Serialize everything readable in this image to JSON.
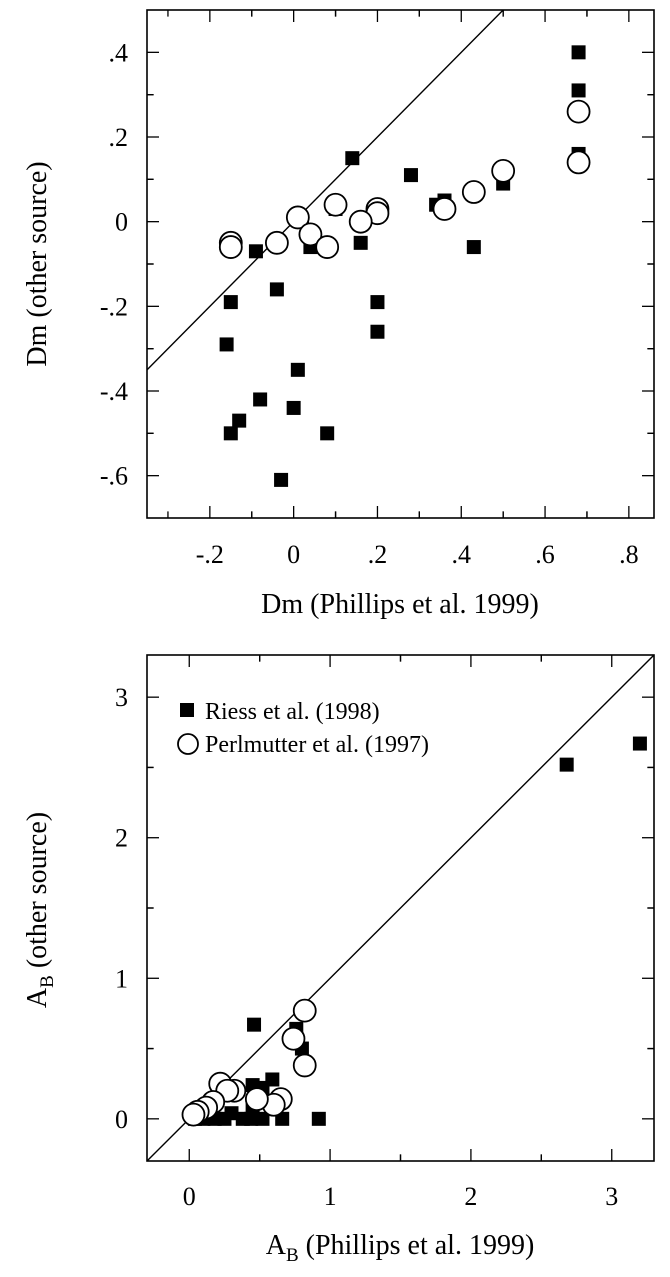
{
  "chart_data": [
    {
      "type": "scatter",
      "title": "",
      "xlabel": "Dm (Phillips et al. 1999)",
      "ylabel": "Dm (other source)",
      "xlim": [
        -0.35,
        0.86
      ],
      "ylim": [
        -0.7,
        0.5
      ],
      "x_ticks": [
        {
          "value": -0.2,
          "label": "-.2"
        },
        {
          "value": 0.0,
          "label": "0"
        },
        {
          "value": 0.2,
          "label": ".2"
        },
        {
          "value": 0.4,
          "label": ".4"
        },
        {
          "value": 0.6,
          "label": ".6"
        },
        {
          "value": 0.8,
          "label": ".8"
        }
      ],
      "y_ticks": [
        {
          "value": -0.6,
          "label": "-.6"
        },
        {
          "value": -0.4,
          "label": "-.4"
        },
        {
          "value": -0.2,
          "label": "-.2"
        },
        {
          "value": 0.0,
          "label": "0"
        },
        {
          "value": 0.2,
          "label": ".2"
        },
        {
          "value": 0.4,
          "label": ".4"
        }
      ],
      "reference_line": "y = x",
      "grid": false,
      "series": [
        {
          "marker": "filled-square",
          "points": [
            {
              "x": 0.68,
              "y": 0.4
            },
            {
              "x": 0.68,
              "y": 0.31
            },
            {
              "x": 0.68,
              "y": 0.16
            },
            {
              "x": 0.14,
              "y": 0.15
            },
            {
              "x": 0.28,
              "y": 0.11
            },
            {
              "x": 0.5,
              "y": 0.09
            },
            {
              "x": 0.36,
              "y": 0.05
            },
            {
              "x": 0.34,
              "y": 0.04
            },
            {
              "x": 0.1,
              "y": 0.03
            },
            {
              "x": 0.02,
              "y": 0.0
            },
            {
              "x": 0.04,
              "y": -0.06
            },
            {
              "x": 0.16,
              "y": -0.05
            },
            {
              "x": 0.43,
              "y": -0.06
            },
            {
              "x": -0.09,
              "y": -0.07
            },
            {
              "x": -0.04,
              "y": -0.16
            },
            {
              "x": -0.15,
              "y": -0.19
            },
            {
              "x": 0.2,
              "y": -0.19
            },
            {
              "x": 0.2,
              "y": -0.26
            },
            {
              "x": -0.16,
              "y": -0.29
            },
            {
              "x": 0.01,
              "y": -0.35
            },
            {
              "x": -0.08,
              "y": -0.42
            },
            {
              "x": 0.0,
              "y": -0.44
            },
            {
              "x": -0.13,
              "y": -0.47
            },
            {
              "x": -0.15,
              "y": -0.5
            },
            {
              "x": 0.08,
              "y": -0.5
            },
            {
              "x": -0.03,
              "y": -0.61
            }
          ]
        },
        {
          "marker": "open-circle",
          "points": [
            {
              "x": 0.68,
              "y": 0.26
            },
            {
              "x": 0.68,
              "y": 0.14
            },
            {
              "x": 0.5,
              "y": 0.12
            },
            {
              "x": 0.43,
              "y": 0.07
            },
            {
              "x": 0.36,
              "y": 0.03
            },
            {
              "x": 0.2,
              "y": 0.03
            },
            {
              "x": 0.2,
              "y": 0.02
            },
            {
              "x": 0.1,
              "y": 0.04
            },
            {
              "x": 0.16,
              "y": 0.0
            },
            {
              "x": 0.01,
              "y": 0.01
            },
            {
              "x": 0.04,
              "y": -0.03
            },
            {
              "x": 0.08,
              "y": -0.06
            },
            {
              "x": -0.04,
              "y": -0.05
            },
            {
              "x": -0.15,
              "y": -0.05
            },
            {
              "x": -0.15,
              "y": -0.06
            }
          ]
        }
      ]
    },
    {
      "type": "scatter",
      "title": "",
      "xlabel": "A_B (Phillips et al. 1999)",
      "ylabel": "A_B (other source)",
      "xlim": [
        -0.3,
        3.3
      ],
      "ylim": [
        -0.3,
        3.3
      ],
      "x_ticks": [
        {
          "value": 0,
          "label": "0"
        },
        {
          "value": 1,
          "label": "1"
        },
        {
          "value": 2,
          "label": "2"
        },
        {
          "value": 3,
          "label": "3"
        }
      ],
      "y_ticks": [
        {
          "value": 0,
          "label": "0"
        },
        {
          "value": 1,
          "label": "1"
        },
        {
          "value": 2,
          "label": "2"
        },
        {
          "value": 3,
          "label": "3"
        }
      ],
      "reference_line": "y = x",
      "grid": false,
      "legend_position": "top-left",
      "series": [
        {
          "name": "Riess et al. (1998)",
          "marker": "filled-square",
          "points": [
            {
              "x": 3.2,
              "y": 2.67
            },
            {
              "x": 2.68,
              "y": 2.52
            },
            {
              "x": 0.82,
              "y": 0.77
            },
            {
              "x": 0.8,
              "y": 0.5
            },
            {
              "x": 0.76,
              "y": 0.64
            },
            {
              "x": 0.46,
              "y": 0.67
            },
            {
              "x": 0.59,
              "y": 0.28
            },
            {
              "x": 0.45,
              "y": 0.24
            },
            {
              "x": 0.52,
              "y": 0.22
            },
            {
              "x": 0.32,
              "y": 0.18
            },
            {
              "x": 0.45,
              "y": 0.08
            },
            {
              "x": 0.3,
              "y": 0.04
            },
            {
              "x": 0.92,
              "y": 0.0
            },
            {
              "x": 0.66,
              "y": 0.0
            },
            {
              "x": 0.52,
              "y": 0.0
            },
            {
              "x": 0.44,
              "y": 0.0
            },
            {
              "x": 0.38,
              "y": 0.0
            },
            {
              "x": 0.25,
              "y": 0.0
            },
            {
              "x": 0.18,
              "y": 0.0
            },
            {
              "x": 0.1,
              "y": 0.0
            },
            {
              "x": 0.04,
              "y": 0.0
            }
          ]
        },
        {
          "name": "Perlmutter et al. (1997)",
          "marker": "open-circle",
          "points": [
            {
              "x": 0.82,
              "y": 0.77
            },
            {
              "x": 0.82,
              "y": 0.38
            },
            {
              "x": 0.74,
              "y": 0.57
            },
            {
              "x": 0.65,
              "y": 0.14
            },
            {
              "x": 0.6,
              "y": 0.1
            },
            {
              "x": 0.48,
              "y": 0.14
            },
            {
              "x": 0.32,
              "y": 0.2
            },
            {
              "x": 0.22,
              "y": 0.25
            },
            {
              "x": 0.27,
              "y": 0.2
            },
            {
              "x": 0.17,
              "y": 0.12
            },
            {
              "x": 0.12,
              "y": 0.08
            },
            {
              "x": 0.06,
              "y": 0.05
            },
            {
              "x": 0.03,
              "y": 0.03
            }
          ]
        }
      ]
    }
  ]
}
